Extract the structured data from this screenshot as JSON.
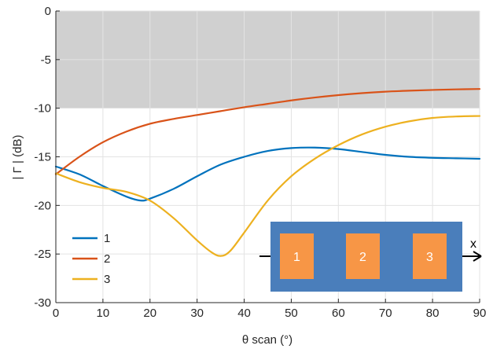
{
  "chart_data": {
    "type": "line",
    "title": "",
    "xlabel": "θ scan (°)",
    "ylabel": "| Γ | (dB)",
    "xlim": [
      0,
      90
    ],
    "ylim": [
      -30,
      0
    ],
    "xticks": [
      0,
      10,
      20,
      30,
      40,
      50,
      60,
      70,
      80,
      90
    ],
    "yticks": [
      0,
      -5,
      -10,
      -15,
      -20,
      -25,
      -30
    ],
    "grid": true,
    "shaded_region": {
      "y_from": -10,
      "y_to": 0,
      "color": "#d0d0d0"
    },
    "legend": {
      "placement": "bottom-left"
    },
    "series": [
      {
        "name": "1",
        "color": "#0072BD",
        "x": [
          0,
          5,
          10,
          15,
          18,
          20,
          25,
          30,
          35,
          40,
          45,
          50,
          55,
          60,
          65,
          70,
          75,
          80,
          85,
          90
        ],
        "values": [
          -16.0,
          -16.8,
          -18.0,
          -19.1,
          -19.5,
          -19.3,
          -18.3,
          -17.0,
          -15.8,
          -15.0,
          -14.4,
          -14.1,
          -14.05,
          -14.2,
          -14.5,
          -14.8,
          -15.0,
          -15.1,
          -15.15,
          -15.2
        ]
      },
      {
        "name": "2",
        "color": "#D95319",
        "x": [
          0,
          5,
          10,
          15,
          20,
          25,
          30,
          35,
          40,
          45,
          50,
          55,
          60,
          65,
          70,
          75,
          80,
          85,
          90
        ],
        "values": [
          -16.8,
          -15.0,
          -13.5,
          -12.4,
          -11.6,
          -11.1,
          -10.7,
          -10.3,
          -9.9,
          -9.55,
          -9.2,
          -8.9,
          -8.65,
          -8.45,
          -8.3,
          -8.2,
          -8.12,
          -8.06,
          -8.02
        ]
      },
      {
        "name": "3",
        "color": "#EDB120",
        "x": [
          0,
          5,
          10,
          15,
          20,
          25,
          30,
          33,
          35,
          37,
          40,
          45,
          50,
          55,
          60,
          65,
          70,
          75,
          80,
          85,
          90
        ],
        "values": [
          -16.7,
          -17.6,
          -18.2,
          -18.6,
          -19.5,
          -21.3,
          -23.6,
          -24.8,
          -25.2,
          -24.7,
          -22.8,
          -19.5,
          -17.0,
          -15.2,
          -13.8,
          -12.7,
          -11.9,
          -11.35,
          -11.0,
          -10.85,
          -10.8
        ]
      }
    ],
    "inset": {
      "elements": [
        "1",
        "2",
        "3"
      ],
      "axis_label": "x",
      "background_color": "#4A7EBB",
      "element_color": "#F79646"
    }
  }
}
